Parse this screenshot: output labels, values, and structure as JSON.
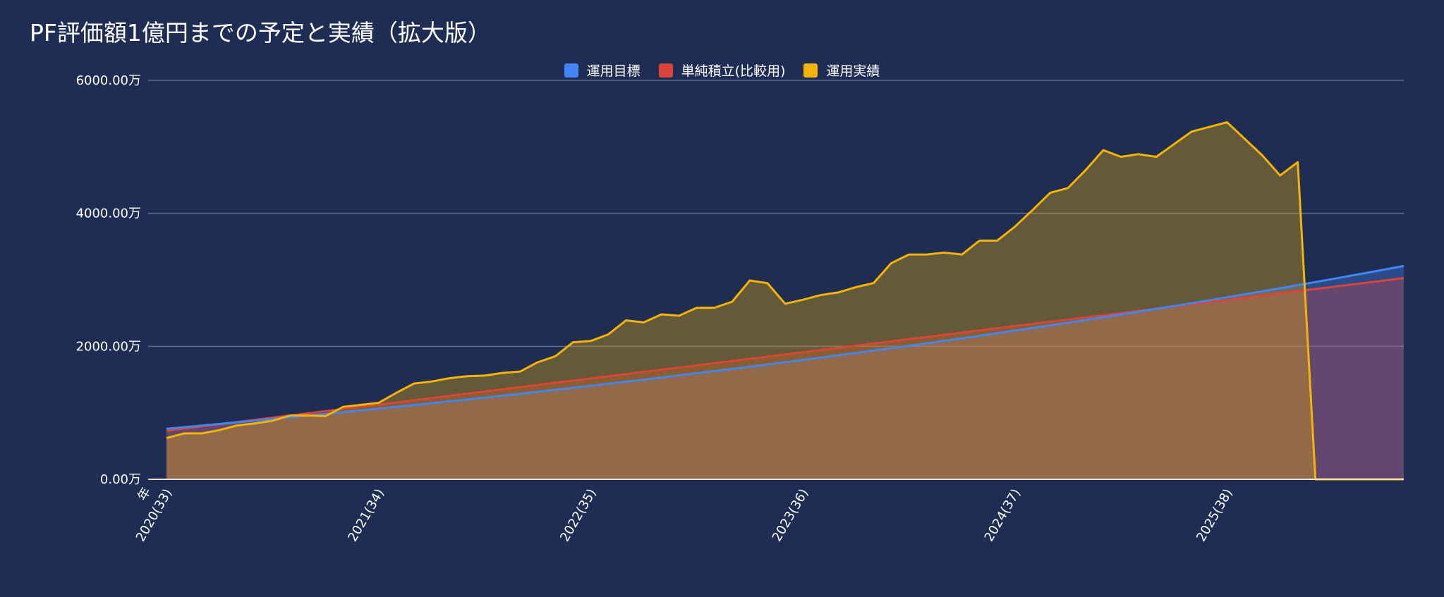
{
  "chart_data": {
    "type": "area",
    "title": "PF評価額1億円までの予定と実績（拡大版）",
    "xlabel": "年",
    "ylabel": "",
    "ylim": [
      0,
      6000
    ],
    "y_ticks": [
      "0.00万",
      "2000.00万",
      "4000.00万",
      "6000.00万"
    ],
    "y_tick_values": [
      0,
      2000,
      4000,
      6000
    ],
    "x_ticks": [
      "2020(33)",
      "2021(34)",
      "2022(35)",
      "2023(36)",
      "2024(37)",
      "2025(38)"
    ],
    "x_tick_index": [
      0,
      12,
      24,
      36,
      48,
      60
    ],
    "x_count": 71,
    "grid": true,
    "legend_position": "top",
    "series": [
      {
        "name": "運用目標",
        "color": "#4285f4",
        "values": [
          760,
          784,
          808,
          833,
          857,
          882,
          907,
          933,
          958,
          984,
          1010,
          1037,
          1063,
          1090,
          1117,
          1145,
          1173,
          1201,
          1229,
          1258,
          1287,
          1316,
          1346,
          1376,
          1406,
          1437,
          1468,
          1499,
          1531,
          1563,
          1595,
          1627,
          1660,
          1693,
          1727,
          1761,
          1795,
          1830,
          1865,
          1900,
          1936,
          1972,
          2008,
          2045,
          2082,
          2120,
          2158,
          2197,
          2236,
          2275,
          2315,
          2355,
          2396,
          2437,
          2478,
          2520,
          2563,
          2606,
          2649,
          2693,
          2738,
          2782,
          2828,
          2874,
          2920,
          2967,
          3014,
          3062,
          3110,
          3159,
          3208
        ]
      },
      {
        "name": "単純積立(比較用)",
        "color": "#db4437",
        "values": [
          730,
          763,
          796,
          828,
          861,
          894,
          927,
          960,
          992,
          1025,
          1058,
          1091,
          1124,
          1156,
          1189,
          1222,
          1255,
          1288,
          1320,
          1353,
          1386,
          1419,
          1452,
          1484,
          1517,
          1550,
          1583,
          1616,
          1648,
          1681,
          1714,
          1747,
          1780,
          1812,
          1845,
          1878,
          1911,
          1944,
          1976,
          2009,
          2042,
          2075,
          2108,
          2140,
          2173,
          2206,
          2239,
          2272,
          2304,
          2337,
          2370,
          2403,
          2436,
          2468,
          2501,
          2534,
          2567,
          2600,
          2632,
          2665,
          2698,
          2731,
          2764,
          2796,
          2829,
          2862,
          2895,
          2928,
          2960,
          2993,
          3026
        ]
      },
      {
        "name": "運用実績",
        "color": "#f4b400",
        "values": [
          620,
          690,
          690,
          740,
          810,
          840,
          880,
          960,
          960,
          950,
          1090,
          1120,
          1150,
          1300,
          1440,
          1470,
          1520,
          1550,
          1560,
          1600,
          1620,
          1760,
          1850,
          2060,
          2080,
          2180,
          2390,
          2360,
          2480,
          2460,
          2580,
          2580,
          2670,
          2990,
          2950,
          2640,
          2700,
          2770,
          2810,
          2890,
          2950,
          3250,
          3380,
          3380,
          3410,
          3380,
          3590,
          3590,
          3800,
          4050,
          4310,
          4380,
          4650,
          4950,
          4850,
          4890,
          4850,
          5040,
          5230,
          5300,
          5370,
          5120,
          4870,
          4570,
          4770,
          0,
          0,
          0,
          0,
          0,
          0
        ]
      }
    ]
  }
}
